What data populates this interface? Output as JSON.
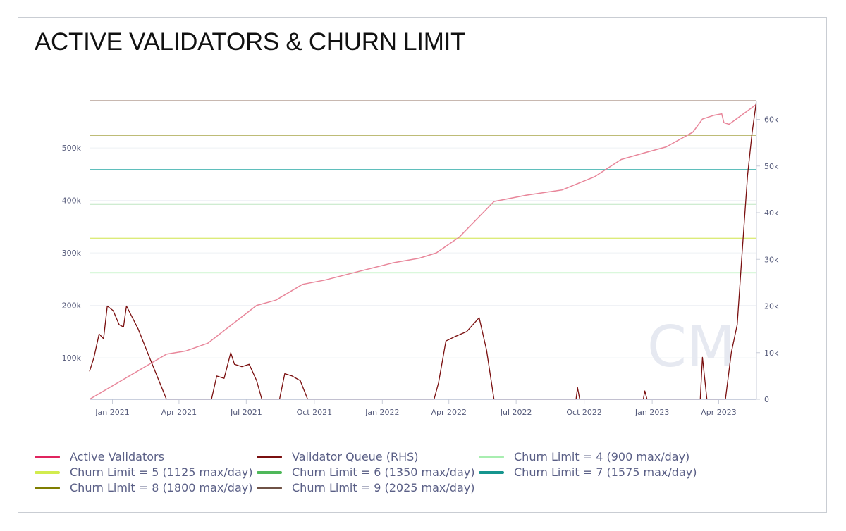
{
  "title": "ACTIVE VALIDATORS & CHURN LIMIT",
  "watermark": "CM",
  "chart_data": {
    "type": "line",
    "title": "ACTIVE VALIDATORS & CHURN LIMIT",
    "x_range": [
      "2020-12-01",
      "2023-05-22"
    ],
    "x_ticks": [
      {
        "date": "2021-01-01",
        "label": "Jan 2021"
      },
      {
        "date": "2021-04-01",
        "label": "Apr 2021"
      },
      {
        "date": "2021-07-01",
        "label": "Jul 2021"
      },
      {
        "date": "2021-10-01",
        "label": "Oct 2021"
      },
      {
        "date": "2022-01-01",
        "label": "Jan 2022"
      },
      {
        "date": "2022-04-01",
        "label": "Apr 2022"
      },
      {
        "date": "2022-07-01",
        "label": "Jul 2022"
      },
      {
        "date": "2022-10-01",
        "label": "Oct 2022"
      },
      {
        "date": "2023-01-01",
        "label": "Jan 2023"
      },
      {
        "date": "2023-04-01",
        "label": "Apr 2023"
      }
    ],
    "y_left": {
      "ylim": [
        21000,
        590000
      ],
      "ticks": [
        100000,
        200000,
        300000,
        400000,
        500000
      ],
      "labels": [
        "100k",
        "200k",
        "300k",
        "400k",
        "500k"
      ]
    },
    "y_right": {
      "ylim": [
        0,
        64000
      ],
      "ticks": [
        0,
        10000,
        20000,
        30000,
        40000,
        50000,
        60000
      ],
      "labels": [
        "0",
        "10k",
        "20k",
        "30k",
        "40k",
        "50k",
        "60k"
      ]
    },
    "grid": true,
    "legend_position": "bottom",
    "series": [
      {
        "name": "Active Validators",
        "axis": "left",
        "color": "#e8869a",
        "legend_color": "#e0245e",
        "points": [
          [
            "2020-12-01",
            21000
          ],
          [
            "2021-03-15",
            107000
          ],
          [
            "2021-04-10",
            113000
          ],
          [
            "2021-05-10",
            128000
          ],
          [
            "2021-07-15",
            200000
          ],
          [
            "2021-08-10",
            210000
          ],
          [
            "2021-09-15",
            240000
          ],
          [
            "2021-10-15",
            248000
          ],
          [
            "2021-12-01",
            265000
          ],
          [
            "2022-01-15",
            281000
          ],
          [
            "2022-02-20",
            290000
          ],
          [
            "2022-03-15",
            300000
          ],
          [
            "2022-04-15",
            330000
          ],
          [
            "2022-06-01",
            398000
          ],
          [
            "2022-07-15",
            410000
          ],
          [
            "2022-09-01",
            420000
          ],
          [
            "2022-10-15",
            445000
          ],
          [
            "2022-11-20",
            478000
          ],
          [
            "2022-12-20",
            490000
          ],
          [
            "2023-01-20",
            502000
          ],
          [
            "2023-02-25",
            530000
          ],
          [
            "2023-03-10",
            555000
          ],
          [
            "2023-03-25",
            562000
          ],
          [
            "2023-04-05",
            565000
          ],
          [
            "2023-04-08",
            548000
          ],
          [
            "2023-04-15",
            545000
          ],
          [
            "2023-05-22",
            583000
          ]
        ]
      },
      {
        "name": "Validator Queue (RHS)",
        "axis": "right",
        "color": "#7a0f0f",
        "legend_color": "#7a0f0f",
        "points": [
          [
            "2020-12-01",
            6000
          ],
          [
            "2020-12-07",
            9000
          ],
          [
            "2020-12-14",
            14000
          ],
          [
            "2020-12-20",
            13000
          ],
          [
            "2020-12-25",
            20000
          ],
          [
            "2021-01-02",
            19000
          ],
          [
            "2021-01-10",
            16000
          ],
          [
            "2021-01-16",
            15500
          ],
          [
            "2021-01-20",
            20000
          ],
          [
            "2021-02-05",
            15000
          ],
          [
            "2021-02-20",
            9000
          ],
          [
            "2021-03-10",
            2000
          ],
          [
            "2021-03-15",
            0
          ],
          [
            "2021-05-15",
            0
          ],
          [
            "2021-05-22",
            5000
          ],
          [
            "2021-06-01",
            4500
          ],
          [
            "2021-06-10",
            10000
          ],
          [
            "2021-06-15",
            7500
          ],
          [
            "2021-06-25",
            7000
          ],
          [
            "2021-07-05",
            7500
          ],
          [
            "2021-07-15",
            4000
          ],
          [
            "2021-07-22",
            0
          ],
          [
            "2021-08-15",
            0
          ],
          [
            "2021-08-22",
            5500
          ],
          [
            "2021-09-01",
            5000
          ],
          [
            "2021-09-12",
            4000
          ],
          [
            "2021-09-22",
            0
          ],
          [
            "2022-03-12",
            0
          ],
          [
            "2022-03-18",
            3500
          ],
          [
            "2022-03-28",
            12500
          ],
          [
            "2022-04-10",
            13500
          ],
          [
            "2022-04-25",
            14500
          ],
          [
            "2022-05-12",
            17500
          ],
          [
            "2022-05-22",
            10500
          ],
          [
            "2022-06-01",
            0
          ],
          [
            "2022-09-20",
            0
          ],
          [
            "2022-09-22",
            2500
          ],
          [
            "2022-09-25",
            0
          ],
          [
            "2022-12-20",
            0
          ],
          [
            "2022-12-22",
            1800
          ],
          [
            "2022-12-25",
            0
          ],
          [
            "2023-03-07",
            0
          ],
          [
            "2023-03-10",
            9000
          ],
          [
            "2023-03-16",
            0
          ],
          [
            "2023-04-10",
            0
          ],
          [
            "2023-04-18",
            10000
          ],
          [
            "2023-04-26",
            16000
          ],
          [
            "2023-05-02",
            30000
          ],
          [
            "2023-05-10",
            48000
          ],
          [
            "2023-05-16",
            57000
          ],
          [
            "2023-05-22",
            64000
          ]
        ]
      }
    ],
    "churn_limits": [
      {
        "name": "Churn Limit = 4 (900 max/day)",
        "value": 262144,
        "color": "#b4f0b8",
        "legend_color": "#a8eeb0"
      },
      {
        "name": "Churn Limit = 5 (1125 max/day)",
        "value": 327680,
        "color": "#dceb7a",
        "legend_color": "#d2ec4e"
      },
      {
        "name": "Churn Limit = 6 (1350 max/day)",
        "value": 393216,
        "color": "#7fce84",
        "legend_color": "#4fb85a"
      },
      {
        "name": "Churn Limit = 7 (1575 max/day)",
        "value": 458752,
        "color": "#5fbfbc",
        "legend_color": "#16958e"
      },
      {
        "name": "Churn Limit = 8 (1800 max/day)",
        "value": 524288,
        "color": "#a9a64a",
        "legend_color": "#7f7e00"
      },
      {
        "name": "Churn Limit = 9 (2025 max/day)",
        "value": 589824,
        "color": "#a68e80",
        "legend_color": "#6f5246"
      }
    ]
  }
}
